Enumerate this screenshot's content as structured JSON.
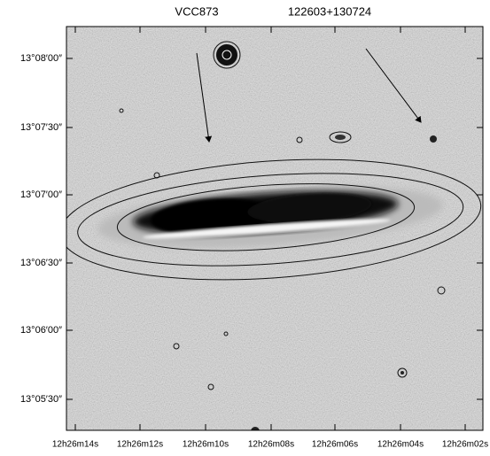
{
  "header": {
    "name": "VCC873",
    "position": "122603+130724"
  },
  "y_axis": {
    "labels": [
      "13°08′00″",
      "13°07′30″",
      "13°07′00″",
      "13°06′30″",
      "13°06′00″",
      "13°05′30″"
    ]
  },
  "x_axis": {
    "labels": [
      "12h26m14s",
      "12h26m12s",
      "12h26m10s",
      "12h26m08s",
      "12h26m06s",
      "12h26m04s",
      "12h26m02s"
    ]
  }
}
